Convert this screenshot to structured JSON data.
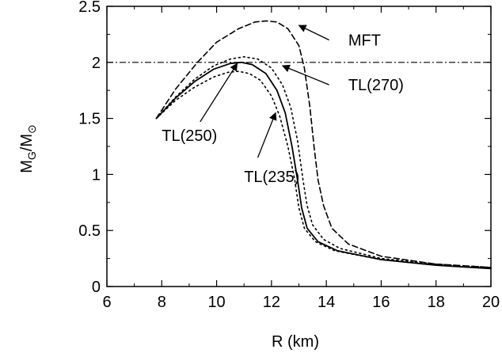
{
  "chart_data": {
    "type": "line",
    "title": "",
    "xlabel": "R (km)",
    "ylabel": {
      "main": "M",
      "sub": "G",
      "sep": "/M",
      "sym": "⊙"
    },
    "xlim": [
      6,
      20
    ],
    "ylim": [
      0,
      2.5
    ],
    "xticks": [
      6,
      8,
      10,
      12,
      14,
      16,
      18,
      20
    ],
    "yticks": [
      0,
      0.5,
      1,
      1.5,
      2,
      2.5
    ],
    "xtick_labels": [
      "6",
      "8",
      "10",
      "12",
      "14",
      "16",
      "18",
      "20"
    ],
    "ytick_labels": [
      "0",
      "0.5",
      "1",
      "1.5",
      "2",
      "2.5"
    ],
    "grid": false,
    "legend": "none",
    "reference_line": {
      "y": 2.0,
      "style": "dash-dot"
    },
    "series": [
      {
        "name": "MFT",
        "style": "dashed",
        "points": [
          [
            7.8,
            1.5
          ],
          [
            8.5,
            1.76
          ],
          [
            9.3,
            2.0
          ],
          [
            10.0,
            2.18
          ],
          [
            10.8,
            2.3
          ],
          [
            11.4,
            2.36
          ],
          [
            11.8,
            2.37
          ],
          [
            12.2,
            2.36
          ],
          [
            12.6,
            2.3
          ],
          [
            13.0,
            2.15
          ],
          [
            13.2,
            1.95
          ],
          [
            13.4,
            1.6
          ],
          [
            13.55,
            1.25
          ],
          [
            13.7,
            0.95
          ],
          [
            13.9,
            0.72
          ],
          [
            14.2,
            0.52
          ],
          [
            14.8,
            0.38
          ],
          [
            16.0,
            0.27
          ],
          [
            18.0,
            0.2
          ],
          [
            20.0,
            0.17
          ]
        ]
      },
      {
        "name": "TL(270)",
        "style": "dotted",
        "points": [
          [
            7.8,
            1.5
          ],
          [
            8.5,
            1.69
          ],
          [
            9.2,
            1.85
          ],
          [
            9.9,
            1.97
          ],
          [
            10.5,
            2.03
          ],
          [
            11.0,
            2.05
          ],
          [
            11.5,
            2.03
          ],
          [
            12.0,
            1.95
          ],
          [
            12.4,
            1.8
          ],
          [
            12.7,
            1.6
          ],
          [
            12.95,
            1.3
          ],
          [
            13.15,
            0.95
          ],
          [
            13.3,
            0.72
          ],
          [
            13.5,
            0.55
          ],
          [
            13.9,
            0.42
          ],
          [
            14.5,
            0.34
          ],
          [
            16.0,
            0.25
          ],
          [
            18.0,
            0.2
          ],
          [
            20.0,
            0.17
          ]
        ]
      },
      {
        "name": "TL(250)",
        "style": "solid",
        "points": [
          [
            7.8,
            1.5
          ],
          [
            8.5,
            1.68
          ],
          [
            9.2,
            1.83
          ],
          [
            9.9,
            1.94
          ],
          [
            10.5,
            1.99
          ],
          [
            10.9,
            2.0
          ],
          [
            11.3,
            1.98
          ],
          [
            11.8,
            1.9
          ],
          [
            12.2,
            1.75
          ],
          [
            12.5,
            1.55
          ],
          [
            12.75,
            1.25
          ],
          [
            12.95,
            0.95
          ],
          [
            13.1,
            0.7
          ],
          [
            13.3,
            0.52
          ],
          [
            13.7,
            0.4
          ],
          [
            14.4,
            0.32
          ],
          [
            16.0,
            0.24
          ],
          [
            18.0,
            0.19
          ],
          [
            20.0,
            0.16
          ]
        ]
      },
      {
        "name": "TL(235)",
        "style": "dotted",
        "points": [
          [
            7.8,
            1.5
          ],
          [
            8.5,
            1.66
          ],
          [
            9.2,
            1.78
          ],
          [
            9.9,
            1.87
          ],
          [
            10.4,
            1.91
          ],
          [
            10.8,
            1.92
          ],
          [
            11.2,
            1.9
          ],
          [
            11.6,
            1.84
          ],
          [
            12.0,
            1.7
          ],
          [
            12.3,
            1.52
          ],
          [
            12.6,
            1.25
          ],
          [
            12.85,
            0.95
          ],
          [
            13.0,
            0.7
          ],
          [
            13.2,
            0.52
          ],
          [
            13.6,
            0.4
          ],
          [
            14.3,
            0.32
          ],
          [
            16.0,
            0.24
          ],
          [
            18.0,
            0.19
          ],
          [
            20.0,
            0.16
          ]
        ]
      }
    ],
    "annotations": [
      {
        "text": "MFT",
        "label_at": [
          14.8,
          2.2
        ],
        "arrow_from": [
          14.1,
          2.2
        ],
        "arrow_to": [
          13.0,
          2.33
        ]
      },
      {
        "text": "TL(270)",
        "label_at": [
          14.8,
          1.8
        ],
        "arrow_from": [
          14.1,
          1.8
        ],
        "arrow_to": [
          12.4,
          1.97
        ]
      },
      {
        "text": "TL(250)",
        "label_at": [
          8.0,
          1.35
        ],
        "arrow_from": [
          9.4,
          1.47
        ],
        "arrow_to": [
          10.75,
          1.99
        ]
      },
      {
        "text": "TL(235)",
        "label_at": [
          11.0,
          0.98
        ],
        "arrow_from": [
          11.5,
          1.15
        ],
        "arrow_to": [
          12.15,
          1.55
        ]
      }
    ]
  }
}
